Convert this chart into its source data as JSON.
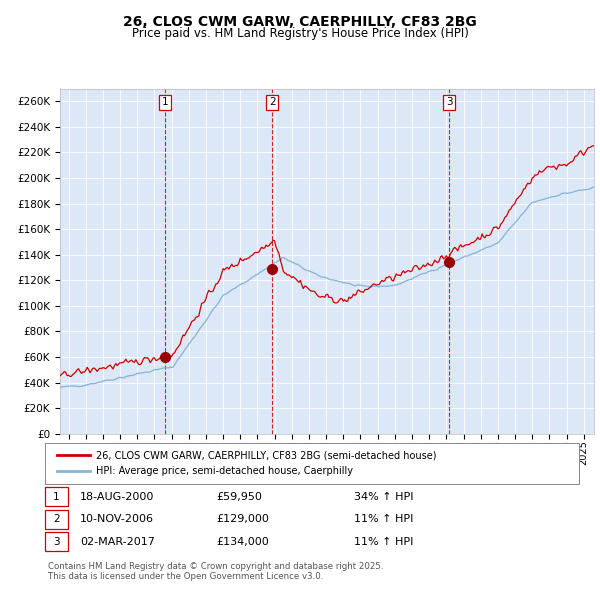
{
  "title": "26, CLOS CWM GARW, CAERPHILLY, CF83 2BG",
  "subtitle": "Price paid vs. HM Land Registry's House Price Index (HPI)",
  "legend_line1": "26, CLOS CWM GARW, CAERPHILLY, CF83 2BG (semi-detached house)",
  "legend_line2": "HPI: Average price, semi-detached house, Caerphilly",
  "footer": "Contains HM Land Registry data © Crown copyright and database right 2025.\nThis data is licensed under the Open Government Licence v3.0.",
  "sales": [
    {
      "num": 1,
      "date": "18-AUG-2000",
      "price": 59950,
      "hpi_pct": "34% ↑ HPI"
    },
    {
      "num": 2,
      "date": "10-NOV-2006",
      "price": 129000,
      "hpi_pct": "11% ↑ HPI"
    },
    {
      "num": 3,
      "date": "02-MAR-2017",
      "price": 134000,
      "hpi_pct": "11% ↑ HPI"
    }
  ],
  "sale_dates_decimal": [
    2000.63,
    2006.86,
    2017.17
  ],
  "background_color": "#dce8f7",
  "red_line_color": "#cc0000",
  "blue_line_color": "#85b3d9",
  "dashed_line_color": "#cc0000",
  "ylim": [
    0,
    270000
  ],
  "ytick_step": 20000,
  "xstart": 1994.5,
  "xend": 2025.6,
  "sale_marker_color": "#990000",
  "sale_marker_size": 7,
  "title_fontsize": 10,
  "subtitle_fontsize": 8.5
}
